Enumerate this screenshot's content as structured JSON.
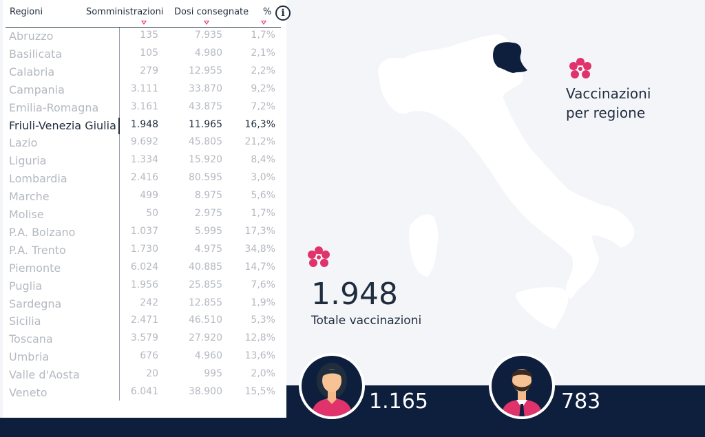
{
  "table": {
    "headers": {
      "region": "Regioni",
      "somministrazioni": "Somministrazioni",
      "dosi": "Dosi consegnate",
      "percent": "%"
    },
    "info_label": "i",
    "selected_index": 5,
    "rows": [
      {
        "region": "Abruzzo",
        "somministrazioni": "135",
        "dosi": "7.935",
        "percent": "1,7%"
      },
      {
        "region": "Basilicata",
        "somministrazioni": "105",
        "dosi": "4.980",
        "percent": "2,1%"
      },
      {
        "region": "Calabria",
        "somministrazioni": "279",
        "dosi": "12.955",
        "percent": "2,2%"
      },
      {
        "region": "Campania",
        "somministrazioni": "3.111",
        "dosi": "33.870",
        "percent": "9,2%"
      },
      {
        "region": "Emilia-Romagna",
        "somministrazioni": "3.161",
        "dosi": "43.875",
        "percent": "7,2%"
      },
      {
        "region": "Friuli-Venezia Giulia",
        "somministrazioni": "1.948",
        "dosi": "11.965",
        "percent": "16,3%"
      },
      {
        "region": "Lazio",
        "somministrazioni": "9.692",
        "dosi": "45.805",
        "percent": "21,2%"
      },
      {
        "region": "Liguria",
        "somministrazioni": "1.334",
        "dosi": "15.920",
        "percent": "8,4%"
      },
      {
        "region": "Lombardia",
        "somministrazioni": "2.416",
        "dosi": "80.595",
        "percent": "3,0%"
      },
      {
        "region": "Marche",
        "somministrazioni": "499",
        "dosi": "8.975",
        "percent": "5,6%"
      },
      {
        "region": "Molise",
        "somministrazioni": "50",
        "dosi": "2.975",
        "percent": "1,7%"
      },
      {
        "region": "P.A. Bolzano",
        "somministrazioni": "1.037",
        "dosi": "5.995",
        "percent": "17,3%"
      },
      {
        "region": "P.A. Trento",
        "somministrazioni": "1.730",
        "dosi": "4.975",
        "percent": "34,8%"
      },
      {
        "region": "Piemonte",
        "somministrazioni": "6.024",
        "dosi": "40.885",
        "percent": "14,7%"
      },
      {
        "region": "Puglia",
        "somministrazioni": "1.956",
        "dosi": "25.855",
        "percent": "7,6%"
      },
      {
        "region": "Sardegna",
        "somministrazioni": "242",
        "dosi": "12.855",
        "percent": "1,9%"
      },
      {
        "region": "Sicilia",
        "somministrazioni": "2.471",
        "dosi": "46.510",
        "percent": "5,3%"
      },
      {
        "region": "Toscana",
        "somministrazioni": "3.579",
        "dosi": "27.920",
        "percent": "12,8%"
      },
      {
        "region": "Umbria",
        "somministrazioni": "676",
        "dosi": "4.960",
        "percent": "13,6%"
      },
      {
        "region": "Valle d'Aosta",
        "somministrazioni": "20",
        "dosi": "995",
        "percent": "2,0%"
      },
      {
        "region": "Veneto",
        "somministrazioni": "6.041",
        "dosi": "38.900",
        "percent": "15,5%"
      }
    ]
  },
  "map": {
    "title_line1": "Vaccinazioni",
    "title_line2": "per regione",
    "highlight_region": "Friuli-Venezia Giulia"
  },
  "summary": {
    "total_value": "1.948",
    "total_label": "Totale vaccinazioni"
  },
  "gender": {
    "women_value": "1.165",
    "men_value": "783"
  },
  "colors": {
    "navy": "#0e1f3d",
    "pink": "#e0336b",
    "muted_text": "#b4b9c0"
  }
}
